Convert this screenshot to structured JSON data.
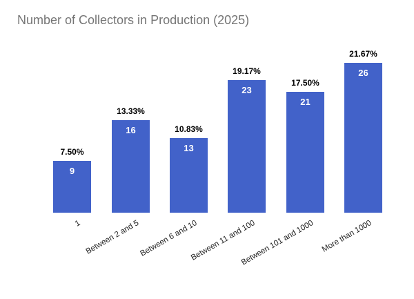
{
  "chart_data": {
    "type": "bar",
    "title": "Number of Collectors in Production (2025)",
    "categories": [
      "1",
      "Between 2 and 5",
      "Between 6 and 10",
      "Between 11 and 100",
      "Between 101 and 1000",
      "More than 1000"
    ],
    "values": [
      9,
      16,
      13,
      23,
      21,
      26
    ],
    "percent_labels": [
      "7.50%",
      "13.33%",
      "10.83%",
      "19.17%",
      "17.50%",
      "21.67%"
    ],
    "xlabel": "",
    "ylabel": "",
    "ylim": [
      0,
      26
    ],
    "grid": false,
    "legend": "none",
    "x_label_rotation_deg": -30,
    "colors": {
      "bar": "#4262c9",
      "title_text": "#757575",
      "percent_text": "#000000",
      "value_text": "#ffffff",
      "axis_text": "#222222",
      "background": "#ffffff"
    }
  }
}
